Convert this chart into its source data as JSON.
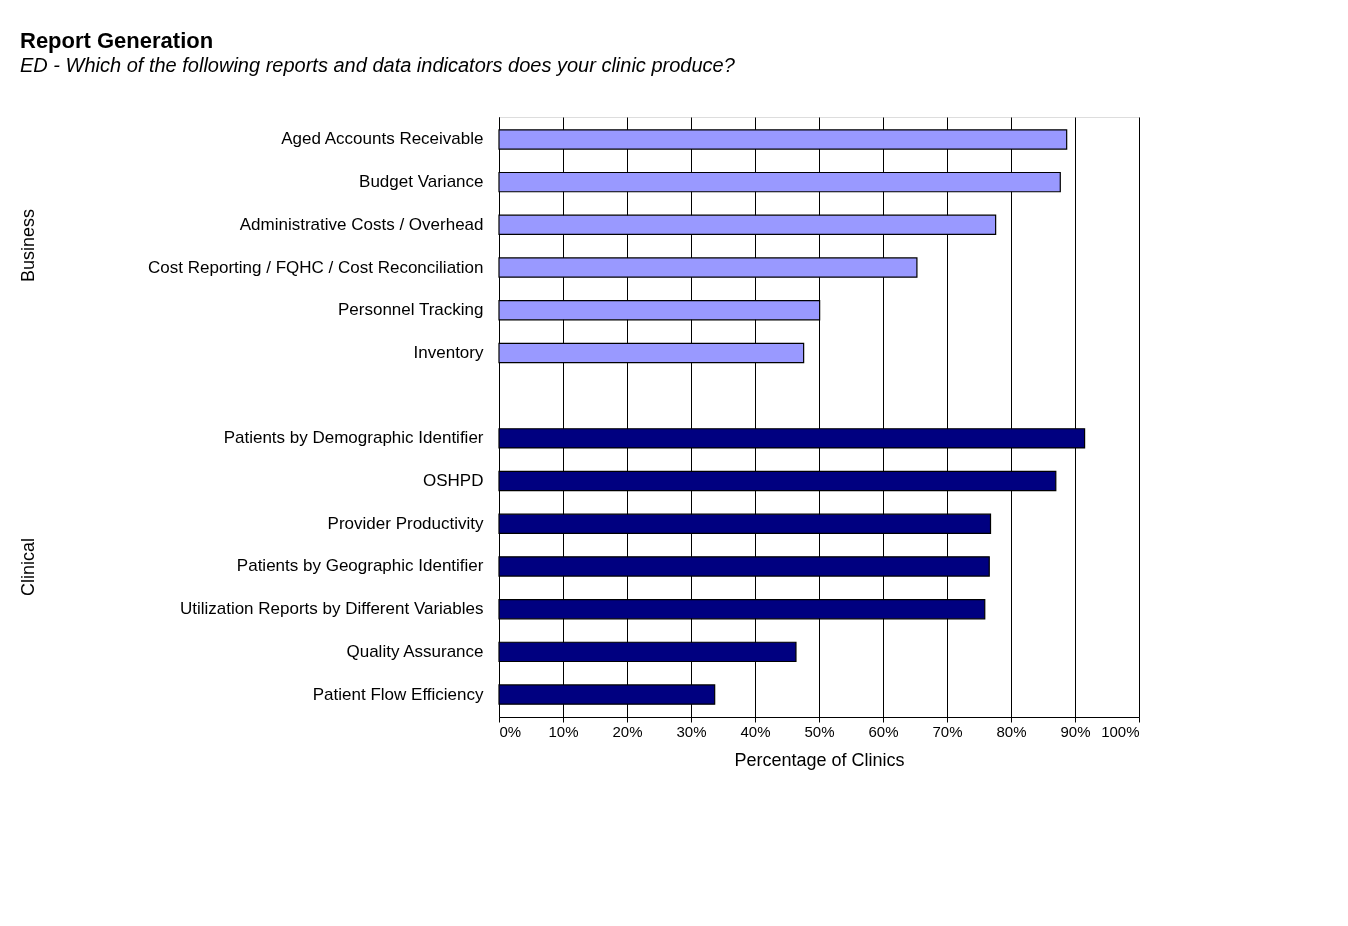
{
  "chart_data": {
    "type": "bar",
    "orientation": "horizontal",
    "title": "Report Generation",
    "subtitle": "ED - Which of the following reports and data indicators does your clinic produce?",
    "xlabel": "Percentage of Clinics",
    "categories": [
      "Aged Accounts Receivable",
      "Budget Variance",
      "Administrative Costs / Overhead",
      "Cost Reporting / FQHC / Cost Reconciliation",
      "Personnel Tracking",
      "Inventory",
      null,
      "Patients by Demographic Identifier",
      "OSHPD",
      "Provider Productivity",
      "Patients by Geographic Identifier",
      "Utilization Reports by Different Variables",
      "Quality Assurance",
      "Patient Flow Efficiency"
    ],
    "series": [
      {
        "color": "#9999ff",
        "values": [
          88.7,
          87.7,
          77.6,
          65.3,
          50.1,
          47.6,
          null,
          null,
          null,
          null,
          null,
          null,
          null,
          null
        ]
      },
      {
        "color": "#000080",
        "values": [
          null,
          null,
          null,
          null,
          null,
          null,
          null,
          91.5,
          87.0,
          76.8,
          76.6,
          75.9,
          46.4,
          33.7
        ]
      }
    ],
    "xlim": [
      0,
      100
    ],
    "xticks": [
      {
        "value": 0,
        "label": "0%"
      },
      {
        "value": 10,
        "label": "10%"
      },
      {
        "value": 20,
        "label": "20%"
      },
      {
        "value": 30,
        "label": "30%"
      },
      {
        "value": 40,
        "label": "40%"
      },
      {
        "value": 50,
        "label": "50%"
      },
      {
        "value": 60,
        "label": "60%"
      },
      {
        "value": 70,
        "label": "70%"
      },
      {
        "value": 80,
        "label": "80%"
      },
      {
        "value": 90,
        "label": "90%"
      },
      {
        "value": 100,
        "label": "100%"
      }
    ],
    "annotations": [
      "Business",
      "Clinical"
    ],
    "grid": "x"
  }
}
